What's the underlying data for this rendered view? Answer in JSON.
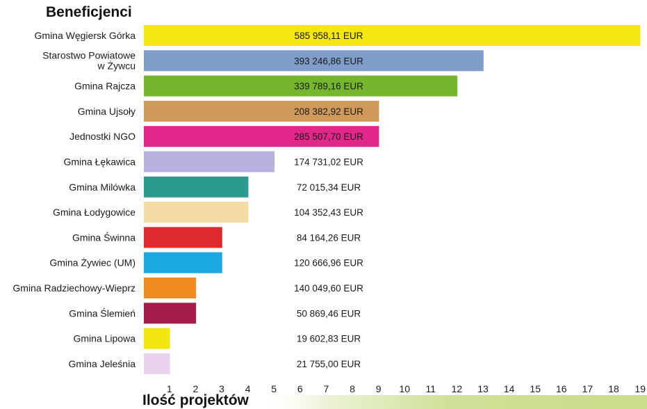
{
  "chart_data": {
    "type": "bar",
    "orientation": "horizontal",
    "title": "Beneficjenci",
    "xlabel": "Ilość projektów",
    "ylabel": "",
    "xlim": [
      0,
      19
    ],
    "xticks": [
      "1",
      "2",
      "3",
      "4",
      "5",
      "6",
      "7",
      "8",
      "9",
      "10",
      "11",
      "12",
      "13",
      "14",
      "15",
      "16",
      "17",
      "18",
      "19"
    ],
    "grid": false,
    "categories": [
      "Gmina Węgiersk Górka",
      "Starostwo Powiatowe w Żywcu",
      "Gmina Rajcza",
      "Gmina Ujsoły",
      "Jednostki NGO",
      "Gmina Łękawica",
      "Gmina Milówka",
      "Gmina Łodygowice",
      "Gmina Świnna",
      "Gmina Żywiec (UM)",
      "Gmina Radziechowy-Wieprz",
      "Gmina Ślemień",
      "Gmina Lipowa",
      "Gmina Jeleśnia"
    ],
    "values": [
      19,
      13,
      12,
      9,
      9,
      5,
      4,
      4,
      3,
      3,
      2,
      2,
      1,
      1
    ],
    "data_labels": [
      "585 958,11 EUR",
      "393 246,86 EUR",
      "339 789,16 EUR",
      "208 382,92 EUR",
      "285 507,70 EUR",
      "174 731,02 EUR",
      "72 015,34 EUR",
      "104 352,43 EUR",
      "84 164,26 EUR",
      "120 666,96 EUR",
      "140 049,60 EUR",
      "50 869,46 EUR",
      "19 602,83 EUR",
      "21 755,00 EUR"
    ],
    "colors": [
      "#f4e611",
      "#7f9dc8",
      "#74b72e",
      "#cf9959",
      "#e2278a",
      "#b7b2e0",
      "#2a9a8e",
      "#f3dca6",
      "#e0292c",
      "#1ba8e3",
      "#f08b1f",
      "#a51d4b",
      "#f1e60f",
      "#ead3ec"
    ],
    "axis_band_color": "#c9dd8b"
  }
}
